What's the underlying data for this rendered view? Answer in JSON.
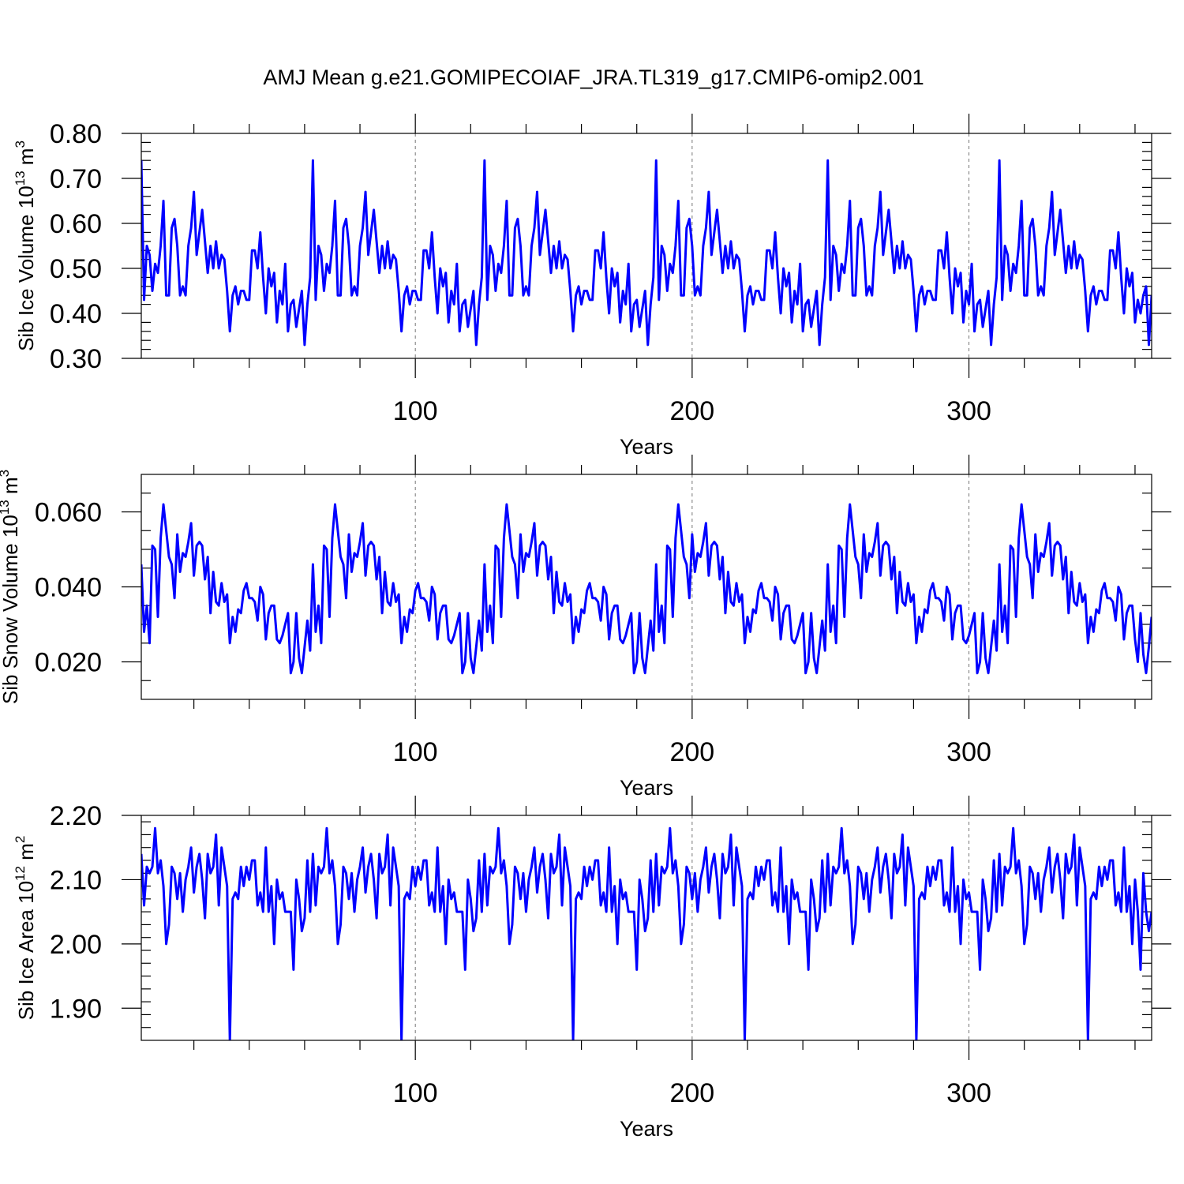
{
  "page": {
    "title": "AMJ Mean g.e21.GOMIPECOIAF_JRA.TL319_g17.CMIP6-omip2.001"
  },
  "chart_data": [
    {
      "type": "line",
      "title": "AMJ Mean g.e21.GOMIPECOIAF_JRA.TL319_g17.CMIP6-omip2.001",
      "ylabel": {
        "main": "Sib Ice Volume 10",
        "exp": "13",
        "unit": " m",
        "unitExp": "3"
      },
      "xlabel": "Years",
      "xlim": [
        1,
        366
      ],
      "ylim": [
        0.3,
        0.8
      ],
      "x_ticks": [
        100,
        200,
        300
      ],
      "x_tick_labels": [
        "100",
        "200",
        "300"
      ],
      "y_ticks": [
        0.3,
        0.4,
        0.5,
        0.6,
        0.7,
        0.8
      ],
      "y_tick_labels": [
        "0.30",
        "0.40",
        "0.50",
        "0.60",
        "0.70",
        "0.80"
      ],
      "y_minor_step": 0.02,
      "x_minor_step": 20,
      "grid": "dashed vertical at major x ticks",
      "line_color": "#0000ff",
      "cycle_length": 62,
      "x_start": 1,
      "cycle_values": [
        0.74,
        0.43,
        0.55,
        0.53,
        0.45,
        0.51,
        0.49,
        0.55,
        0.65,
        0.44,
        0.44,
        0.59,
        0.61,
        0.55,
        0.44,
        0.46,
        0.44,
        0.55,
        0.59,
        0.67,
        0.53,
        0.58,
        0.63,
        0.56,
        0.49,
        0.55,
        0.5,
        0.56,
        0.5,
        0.53,
        0.52,
        0.45,
        0.36,
        0.44,
        0.46,
        0.42,
        0.45,
        0.45,
        0.43,
        0.43,
        0.54,
        0.54,
        0.5,
        0.58,
        0.48,
        0.4,
        0.5,
        0.46,
        0.49,
        0.38,
        0.45,
        0.42,
        0.51,
        0.36,
        0.42,
        0.43,
        0.37,
        0.41,
        0.45,
        0.33,
        0.42,
        0.48
      ],
      "tail_values": [
        0.43,
        0.4,
        0.44,
        0.46,
        0.33,
        0.44
      ]
    },
    {
      "type": "line",
      "ylabel": {
        "main": "Sib Snow Volume 10",
        "exp": "13",
        "unit": " m",
        "unitExp": "3"
      },
      "xlabel": "Years",
      "xlim": [
        1,
        366
      ],
      "ylim": [
        0.01,
        0.07
      ],
      "x_ticks": [
        100,
        200,
        300
      ],
      "x_tick_labels": [
        "100",
        "200",
        "300"
      ],
      "y_ticks": [
        0.02,
        0.04,
        0.06
      ],
      "y_tick_labels": [
        "0.020",
        "0.040",
        "0.060"
      ],
      "y_minor_step": 0.005,
      "x_minor_step": 20,
      "grid": "dashed vertical at major x ticks",
      "line_color": "#0000ff",
      "cycle_length": 62,
      "x_start": 1,
      "cycle_values": [
        0.046,
        0.028,
        0.035,
        0.025,
        0.051,
        0.05,
        0.032,
        0.053,
        0.062,
        0.055,
        0.048,
        0.046,
        0.037,
        0.054,
        0.044,
        0.049,
        0.048,
        0.052,
        0.057,
        0.043,
        0.051,
        0.052,
        0.051,
        0.042,
        0.048,
        0.033,
        0.044,
        0.036,
        0.035,
        0.041,
        0.036,
        0.038,
        0.025,
        0.032,
        0.028,
        0.034,
        0.033,
        0.039,
        0.041,
        0.037,
        0.037,
        0.036,
        0.031,
        0.04,
        0.038,
        0.026,
        0.033,
        0.035,
        0.035,
        0.026,
        0.025,
        0.027,
        0.03,
        0.033,
        0.017,
        0.02,
        0.033,
        0.021,
        0.017,
        0.024,
        0.031,
        0.023
      ],
      "tail_values": [
        0.02,
        0.033,
        0.022,
        0.017,
        0.024,
        0.032
      ]
    },
    {
      "type": "line",
      "ylabel": {
        "main": "Sib Ice Area 10",
        "exp": "12",
        "unit": " m",
        "unitExp": "2"
      },
      "xlabel": "Years",
      "xlim": [
        1,
        366
      ],
      "ylim": [
        1.85,
        2.2
      ],
      "x_ticks": [
        100,
        200,
        300
      ],
      "x_tick_labels": [
        "100",
        "200",
        "300"
      ],
      "y_ticks": [
        1.9,
        2.0,
        2.1,
        2.2
      ],
      "y_tick_labels": [
        "1.90",
        "2.00",
        "2.10",
        "2.20"
      ],
      "y_minor_step": 0.02,
      "x_minor_step": 20,
      "grid": "dashed vertical at major x ticks",
      "line_color": "#0000ff",
      "cycle_length": 62,
      "x_start": 1,
      "cycle_values": [
        2.14,
        2.06,
        2.12,
        2.11,
        2.12,
        2.18,
        2.11,
        2.13,
        2.09,
        2.0,
        2.03,
        2.12,
        2.11,
        2.07,
        2.11,
        2.05,
        2.1,
        2.12,
        2.15,
        2.08,
        2.12,
        2.14,
        2.1,
        2.04,
        2.14,
        2.11,
        2.12,
        2.17,
        2.06,
        2.15,
        2.12,
        2.09,
        1.85,
        2.07,
        2.08,
        2.07,
        2.12,
        2.09,
        2.12,
        2.1,
        2.13,
        2.13,
        2.06,
        2.08,
        2.05,
        2.15,
        2.05,
        2.09,
        2.0,
        2.1,
        2.07,
        2.08,
        2.05,
        2.05,
        2.05,
        1.96,
        2.1,
        2.07,
        2.02,
        2.04,
        2.13,
        2.05
      ],
      "tail_values": [
        2.05,
        1.96,
        2.11,
        2.05,
        2.02,
        2.05
      ]
    }
  ]
}
